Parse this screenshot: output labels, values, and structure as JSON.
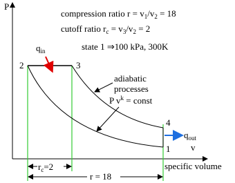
{
  "axes": {
    "y_label": "P",
    "x_label": "v",
    "x_title": "specific volume"
  },
  "annotations": {
    "compression_ratio": [
      "compression ratio r = v",
      "1",
      "/v",
      "2",
      " = 18"
    ],
    "cutoff_ratio": [
      "cutoff ratio r",
      "c",
      " = v",
      "3",
      "/v",
      "2",
      " = 2"
    ],
    "state_1": "state  1  ⇒100 kPa, 300K",
    "heat_in": [
      "q",
      "in"
    ],
    "heat_out": [
      "q",
      "out"
    ],
    "adiabatic": [
      "adiabatic",
      "processes"
    ],
    "process_law": [
      "P v",
      "k",
      " = const"
    ],
    "cutoff_dimension": [
      "r",
      "c",
      "=2"
    ],
    "ratio_dimension": "r = 18"
  },
  "states": [
    "1",
    "2",
    "3",
    "4"
  ]
}
